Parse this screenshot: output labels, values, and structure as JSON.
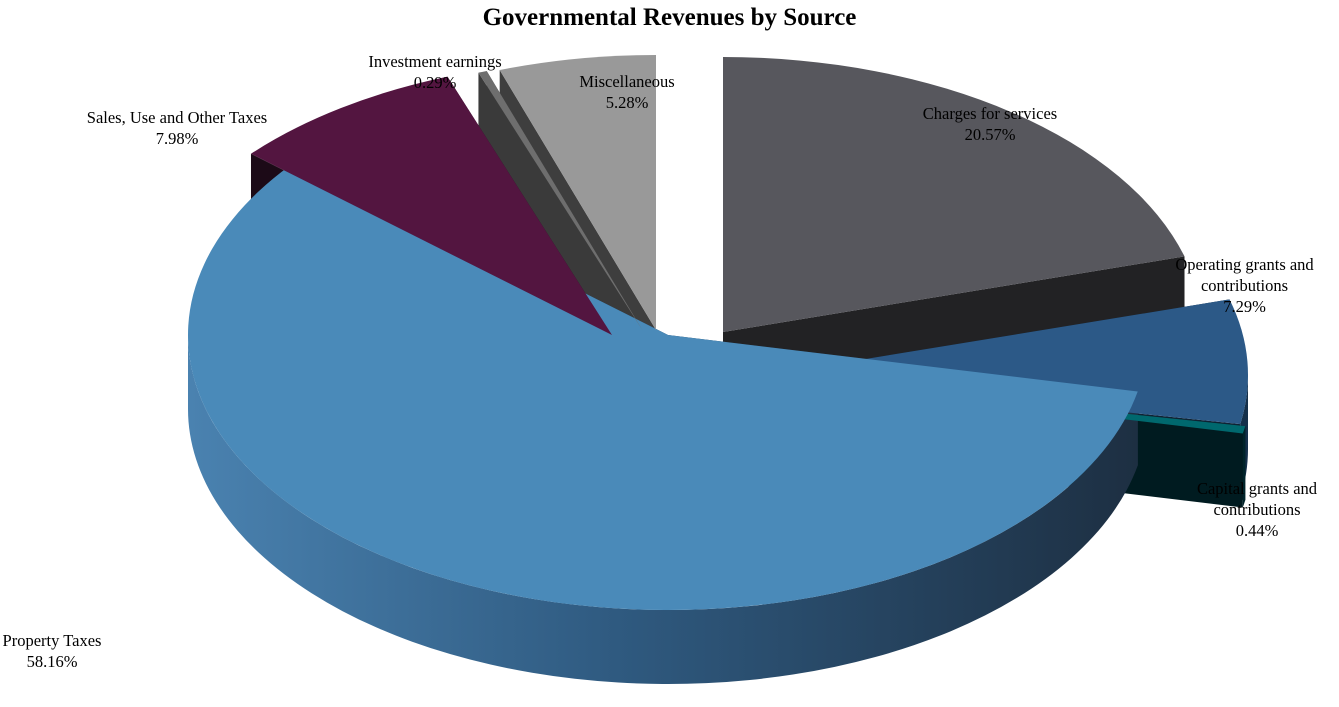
{
  "chart_data": {
    "type": "pie",
    "style": "3d-exploded",
    "title": "Governmental Revenues by Source",
    "slices": [
      {
        "key": "property",
        "label": "Property Taxes",
        "label_lines": [
          "Property Taxes"
        ],
        "value": 58.16,
        "value_label": "58.16%",
        "color": "#4a8ab9",
        "side_dark": "#1f3348",
        "side_light": "#4279a6"
      },
      {
        "key": "sales",
        "label": "Sales, Use and Other Taxes",
        "label_lines": [
          "Sales, Use and Other Taxes"
        ],
        "value": 7.98,
        "value_label": "7.98%",
        "color": "#531540",
        "side_dark": "#1c0a17",
        "side_light": "#2a0d23"
      },
      {
        "key": "investment",
        "label": "Investment earnings",
        "label_lines": [
          "Investment  earnings"
        ],
        "value": 0.29,
        "value_label": "0.29%",
        "color": "#6e6e6e",
        "side_dark": "#3a3a3a",
        "side_light": "#4a4a4a"
      },
      {
        "key": "misc",
        "label": "Miscellaneous",
        "label_lines": [
          "Miscellaneous"
        ],
        "value": 5.28,
        "value_label": "5.28%",
        "color": "#999999",
        "side_dark": "#3e3e3e",
        "side_light": "#515151"
      },
      {
        "key": "charges",
        "label": "Charges for services",
        "label_lines": [
          "Charges  for services"
        ],
        "value": 20.57,
        "value_label": "20.57%",
        "color": "#57575d",
        "side_dark": "#222224",
        "side_light": "#2a2a2c"
      },
      {
        "key": "operating",
        "label": "Operating grants and contributions",
        "label_lines": [
          "Operating  grants and",
          "contributions"
        ],
        "value": 7.29,
        "value_label": "7.29%",
        "color": "#2c5987",
        "side_dark": "#0f2233",
        "side_light": "#15304a"
      },
      {
        "key": "capital",
        "label": "Capital grants and contributions",
        "label_lines": [
          "Capital grants and",
          "contributions"
        ],
        "value": 0.44,
        "value_label": "0.44%",
        "color": "#00686e",
        "side_dark": "#001b20",
        "side_light": "#00242a"
      }
    ]
  }
}
